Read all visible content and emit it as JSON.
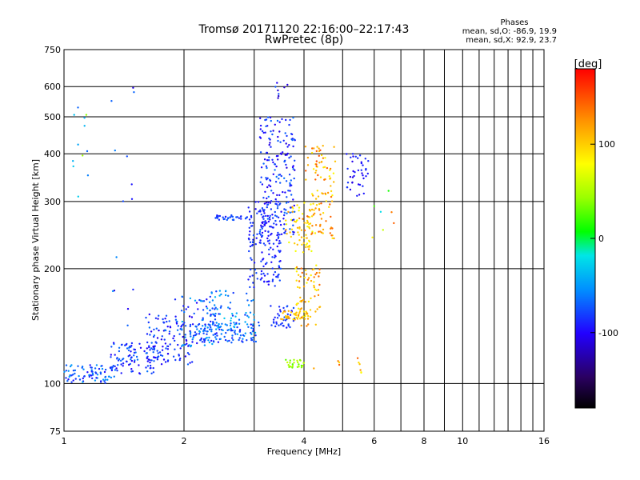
{
  "chart_data": {
    "type": "scatter",
    "title": "Tromsø 20171120 22:16:00–22:17:43",
    "subtitle": "RwPretec (8p)",
    "xlabel": "Frequency [MHz]",
    "ylabel": "Stationary phase Virtual Height [km]",
    "x_scale": "log",
    "y_scale": "log",
    "xlim": [
      1,
      16
    ],
    "ylim": [
      75,
      750
    ],
    "x_ticks": [
      1,
      2,
      4,
      6,
      8,
      10,
      16
    ],
    "x_tick_labels": [
      "1",
      "2",
      "4",
      "6",
      "8",
      "10",
      "16"
    ],
    "x_minor_grid": [
      3,
      5,
      7,
      9,
      11,
      12,
      13,
      14,
      15
    ],
    "y_ticks": [
      75,
      100,
      200,
      300,
      400,
      500,
      600,
      750
    ],
    "y_tick_labels": [
      "75",
      "100",
      "200",
      "300",
      "400",
      "500",
      "600",
      "750"
    ],
    "grid": true,
    "phase_info": {
      "heading": "Phases",
      "o_line": "mean, sd,O: -86.9, 19.9",
      "x_line": "mean, sd,X:  92.9, 23.7"
    },
    "colorbar": {
      "label": "[deg]",
      "range": [
        -180,
        180
      ],
      "ticks": [
        100,
        0,
        -100
      ],
      "tick_labels": [
        "100",
        "0",
        "-100"
      ]
    },
    "clusters": [
      {
        "x": [
          1.0,
          1.35
        ],
        "y": [
          100,
          112
        ],
        "phase": [
          -95,
          -40
        ],
        "n": 80
      },
      {
        "x": [
          1.3,
          1.7
        ],
        "y": [
          106,
          128
        ],
        "phase": [
          -105,
          -60
        ],
        "n": 90
      },
      {
        "x": [
          1.6,
          2.1
        ],
        "y": [
          112,
          152
        ],
        "phase": [
          -110,
          -60
        ],
        "n": 110
      },
      {
        "x": [
          1.9,
          2.4
        ],
        "y": [
          125,
          170
        ],
        "phase": [
          -100,
          -40
        ],
        "n": 80
      },
      {
        "x": [
          2.1,
          3.1
        ],
        "y": [
          128,
          145
        ],
        "phase": [
          -95,
          -40
        ],
        "n": 120
      },
      {
        "x": [
          2.3,
          3.0
        ],
        "y": [
          140,
          175
        ],
        "phase": [
          -90,
          -30
        ],
        "n": 60
      },
      {
        "x": [
          2.4,
          2.9
        ],
        "y": [
          268,
          276
        ],
        "phase": [
          -90,
          -65
        ],
        "n": 35
      },
      {
        "x": [
          2.9,
          3.5
        ],
        "y": [
          178,
          300
        ],
        "phase": [
          -100,
          -70
        ],
        "n": 150
      },
      {
        "x": [
          3.1,
          3.8
        ],
        "y": [
          245,
          500
        ],
        "phase": [
          -110,
          -60
        ],
        "n": 200
      },
      {
        "x": [
          3.3,
          3.8
        ],
        "y": [
          140,
          160
        ],
        "phase": [
          -95,
          -70
        ],
        "n": 40
      },
      {
        "x": [
          3.5,
          4.1
        ],
        "y": [
          147,
          155
        ],
        "phase": [
          90,
          120
        ],
        "n": 35
      },
      {
        "x": [
          3.8,
          4.4
        ],
        "y": [
          140,
          205
        ],
        "phase": [
          80,
          140
        ],
        "n": 70
      },
      {
        "x": [
          3.6,
          4.2
        ],
        "y": [
          220,
          300
        ],
        "phase": [
          70,
          130
        ],
        "n": 60
      },
      {
        "x": [
          4.0,
          4.8
        ],
        "y": [
          240,
          420
        ],
        "phase": [
          80,
          150
        ],
        "n": 110
      },
      {
        "x": [
          3.6,
          4.0
        ],
        "y": [
          110,
          116
        ],
        "phase": [
          20,
          60
        ],
        "n": 25
      },
      {
        "x": [
          5.1,
          5.8
        ],
        "y": [
          310,
          400
        ],
        "phase": [
          -110,
          -80
        ],
        "n": 40
      },
      {
        "x": [
          1.05,
          1.15
        ],
        "y": [
          300,
          580
        ],
        "phase": [
          -100,
          50
        ],
        "n": 12
      },
      {
        "x": [
          1.3,
          1.5
        ],
        "y": [
          120,
          600
        ],
        "phase": [
          -110,
          -40
        ],
        "n": 14
      },
      {
        "x": [
          3.3,
          3.7
        ],
        "y": [
          555,
          620
        ],
        "phase": [
          -120,
          -70
        ],
        "n": 8
      },
      {
        "x": [
          4.2,
          5.6
        ],
        "y": [
          105,
          118
        ],
        "phase": [
          80,
          160
        ],
        "n": 10
      },
      {
        "x": [
          5.8,
          6.9
        ],
        "y": [
          230,
          330
        ],
        "phase": [
          -100,
          150
        ],
        "n": 7
      }
    ]
  }
}
